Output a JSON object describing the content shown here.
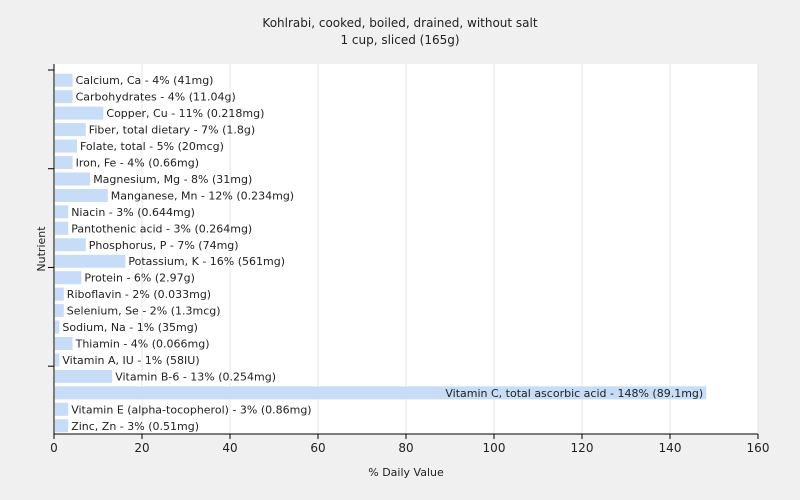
{
  "chart_data": {
    "type": "bar",
    "orientation": "horizontal",
    "title": "Kohlrabi, cooked, boiled, drained, without salt",
    "subtitle": "1 cup, sliced (165g)",
    "xlabel": "% Daily Value",
    "ylabel": "Nutrient",
    "xlim": [
      0,
      160
    ],
    "xticks": [
      0,
      20,
      40,
      60,
      80,
      100,
      120,
      140,
      160
    ],
    "grid": true,
    "bar_color": "#c6dcf7",
    "categories": [
      "Calcium, Ca",
      "Carbohydrates",
      "Copper, Cu",
      "Fiber, total dietary",
      "Folate, total",
      "Iron, Fe",
      "Magnesium, Mg",
      "Manganese, Mn",
      "Niacin",
      "Pantothenic acid",
      "Phosphorus, P",
      "Potassium, K",
      "Protein",
      "Riboflavin",
      "Selenium, Se",
      "Sodium, Na",
      "Thiamin",
      "Vitamin A, IU",
      "Vitamin B-6",
      "Vitamin C, total ascorbic acid",
      "Vitamin E (alpha-tocopherol)",
      "Zinc, Zn"
    ],
    "values": [
      4,
      4,
      11,
      7,
      5,
      4,
      8,
      12,
      3,
      3,
      7,
      16,
      6,
      2,
      2,
      1,
      4,
      1,
      13,
      148,
      3,
      3
    ],
    "bar_labels": [
      "Calcium, Ca - 4% (41mg)",
      "Carbohydrates - 4% (11.04g)",
      "Copper, Cu - 11% (0.218mg)",
      "Fiber, total dietary - 7% (1.8g)",
      "Folate, total - 5% (20mcg)",
      "Iron, Fe - 4% (0.66mg)",
      "Magnesium, Mg - 8% (31mg)",
      "Manganese, Mn - 12% (0.234mg)",
      "Niacin - 3% (0.644mg)",
      "Pantothenic acid - 3% (0.264mg)",
      "Phosphorus, P - 7% (74mg)",
      "Potassium, K - 16% (561mg)",
      "Protein - 6% (2.97g)",
      "Riboflavin - 2% (0.033mg)",
      "Selenium, Se - 2% (1.3mcg)",
      "Sodium, Na - 1% (35mg)",
      "Thiamin - 4% (0.066mg)",
      "Vitamin A, IU - 1% (58IU)",
      "Vitamin B-6 - 13% (0.254mg)",
      "Vitamin C, total ascorbic acid - 148% (89.1mg)",
      "Vitamin E (alpha-tocopherol) - 3% (0.86mg)",
      "Zinc, Zn - 3% (0.51mg)"
    ]
  }
}
